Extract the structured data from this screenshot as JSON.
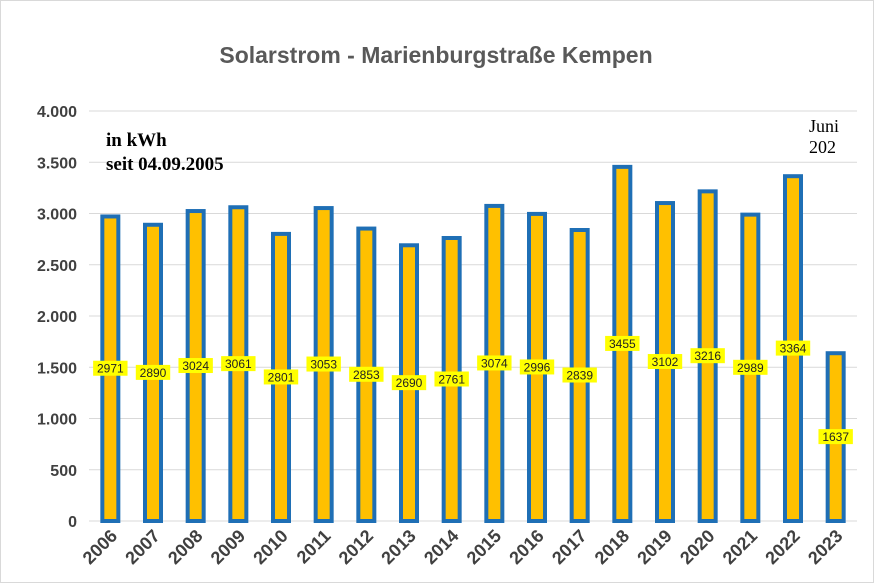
{
  "chart_data": {
    "type": "bar",
    "title": "Solarstrom  - Marienburgstraße Kempen",
    "annotation": [
      "in kWh",
      "seit 04.09.2005"
    ],
    "corner_note": [
      "Juni",
      "202"
    ],
    "categories": [
      "2006",
      "2007",
      "2008",
      "2009",
      "2010",
      "2011",
      "2012",
      "2013",
      "2014",
      "2015",
      "2016",
      "2017",
      "2018",
      "2019",
      "2020",
      "2021",
      "2022",
      "2023"
    ],
    "values": [
      2971,
      2890,
      3024,
      3061,
      2801,
      3053,
      2853,
      2690,
      2761,
      3074,
      2996,
      2839,
      3455,
      3102,
      3216,
      2989,
      3364,
      1637
    ],
    "data_labels": [
      "2971",
      "2890",
      "3024",
      "3061",
      "2801",
      "3053",
      "2853",
      "2690",
      "2761",
      "3074",
      "2996",
      "2839",
      "3455",
      "3102",
      "3216",
      "2989",
      "3364",
      "1637"
    ],
    "y_ticks": [
      0,
      500,
      1000,
      1500,
      2000,
      2500,
      3000,
      3500,
      4000
    ],
    "y_tick_labels": [
      "0",
      "500",
      "1.000",
      "1.500",
      "2.000",
      "2.500",
      "3.000",
      "3.500",
      "4.000"
    ],
    "ylim": [
      0,
      4000
    ],
    "xlabel": "",
    "ylabel": "",
    "grid": true,
    "legend": "none",
    "colors": {
      "bar_fill": "#FFC000",
      "bar_edge": "#1F6FB5",
      "label_bg": "#FFFF00",
      "grid": "#d9d9d9"
    }
  }
}
